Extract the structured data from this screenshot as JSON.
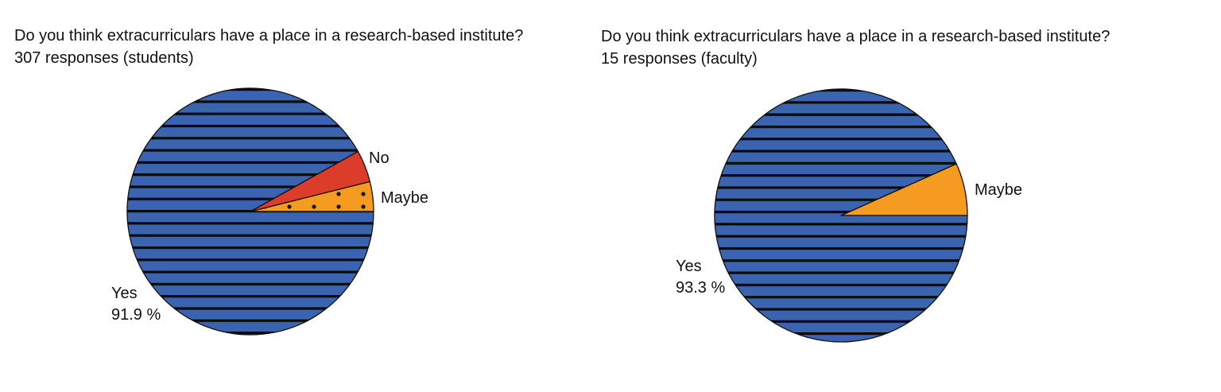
{
  "colors": {
    "yes": "#3a64b0",
    "yes_stripe": "#0a0a0a",
    "no": "#dc3c2a",
    "maybe": "#f59b22",
    "outline": "#111111",
    "dot": "#111111"
  },
  "chart_data": [
    {
      "type": "pie",
      "title": "Do you think extracurriculars have a place in a research-based institute?",
      "subtitle": "307 responses (students)",
      "legend": "none",
      "slices": [
        {
          "label": "Yes",
          "value": 91.9,
          "value_label": "91.9 %",
          "color": "#3a64b0",
          "pattern": "horizontal-stripes"
        },
        {
          "label": "No",
          "value": 4.2,
          "value_label": "",
          "color": "#dc3c2a",
          "pattern": "solid"
        },
        {
          "label": "Maybe",
          "value": 3.9,
          "value_label": "",
          "color": "#f59b22",
          "pattern": "dots"
        }
      ]
    },
    {
      "type": "pie",
      "title": "Do you think extracurriculars have a place in a research-based institute?",
      "subtitle": "15 responses (faculty)",
      "legend": "none",
      "slices": [
        {
          "label": "Yes",
          "value": 93.3,
          "value_label": "93.3 %",
          "color": "#3a64b0",
          "pattern": "horizontal-stripes"
        },
        {
          "label": "Maybe",
          "value": 6.7,
          "value_label": "",
          "color": "#f59b22",
          "pattern": "solid"
        }
      ]
    }
  ]
}
